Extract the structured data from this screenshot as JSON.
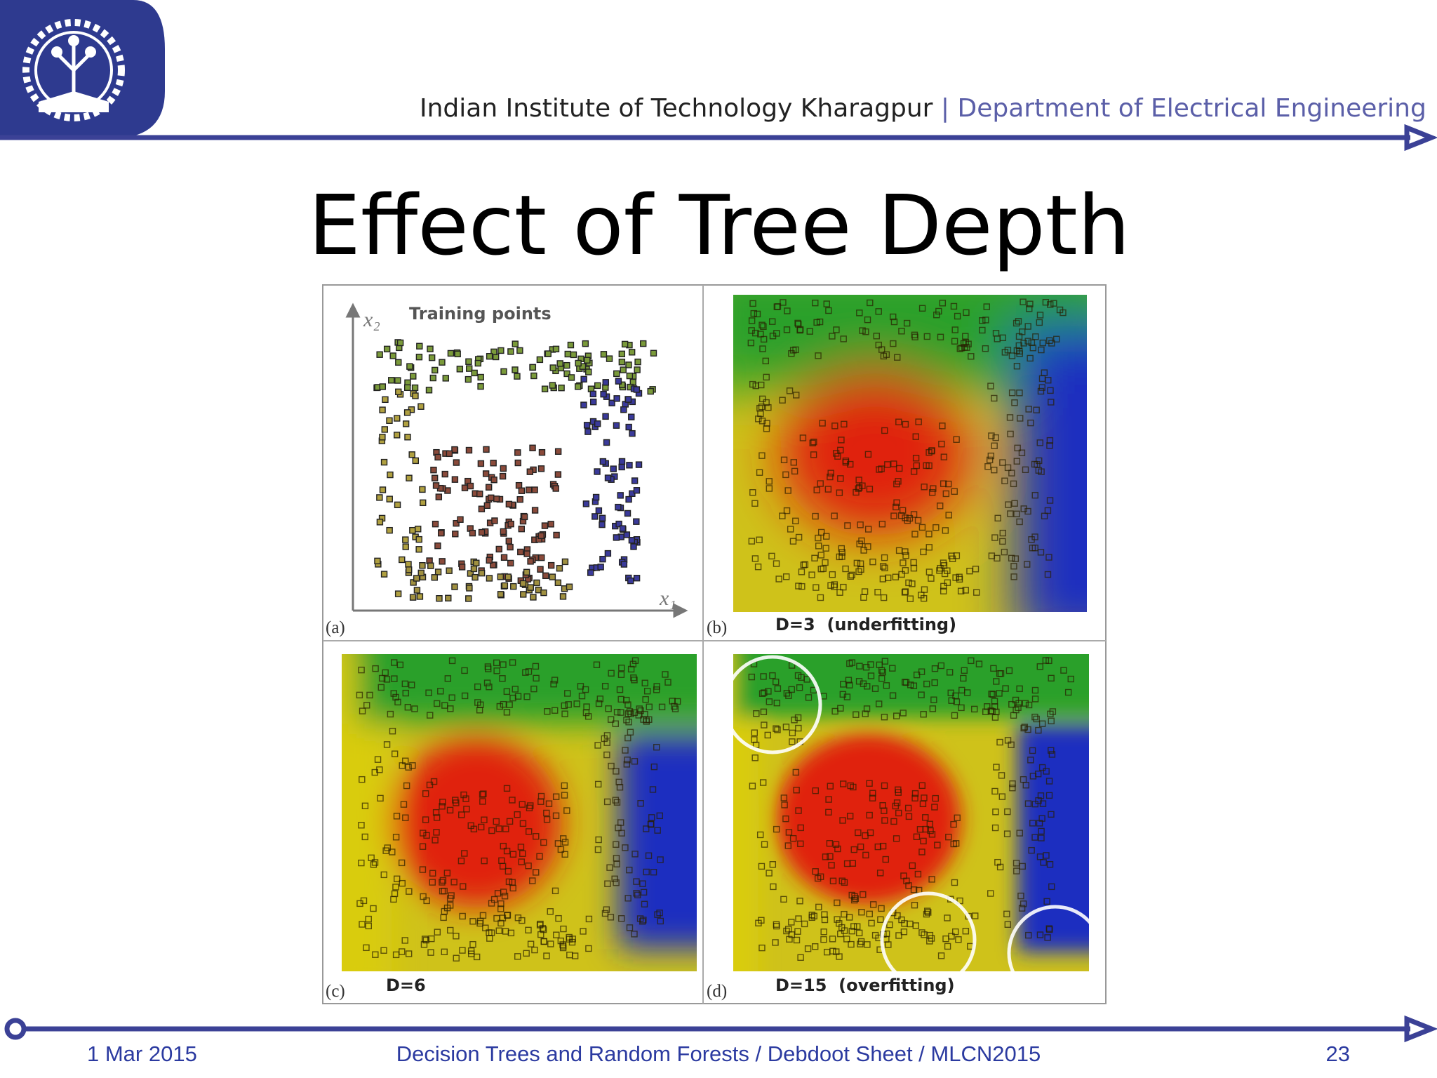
{
  "header": {
    "institute": "Indian Institute of Technology Kharagpur",
    "separator": "|",
    "department": "Department of Electrical Engineering"
  },
  "title": "Effect of Tree Depth",
  "figure": {
    "panels": [
      {
        "label": "(a)",
        "caption": "Training points",
        "y_axis": "x₂",
        "x_axis": "x₁"
      },
      {
        "label": "(b)",
        "caption": "D=3  (underfitting)"
      },
      {
        "label": "(c)",
        "caption": "D=6"
      },
      {
        "label": "(d)",
        "caption": "D=15  (overfitting)"
      }
    ]
  },
  "footer": {
    "date": "1 Mar 2015",
    "title": "Decision Trees and Random Forests / Debdoot Sheet / MLCN2015",
    "page": 23
  }
}
